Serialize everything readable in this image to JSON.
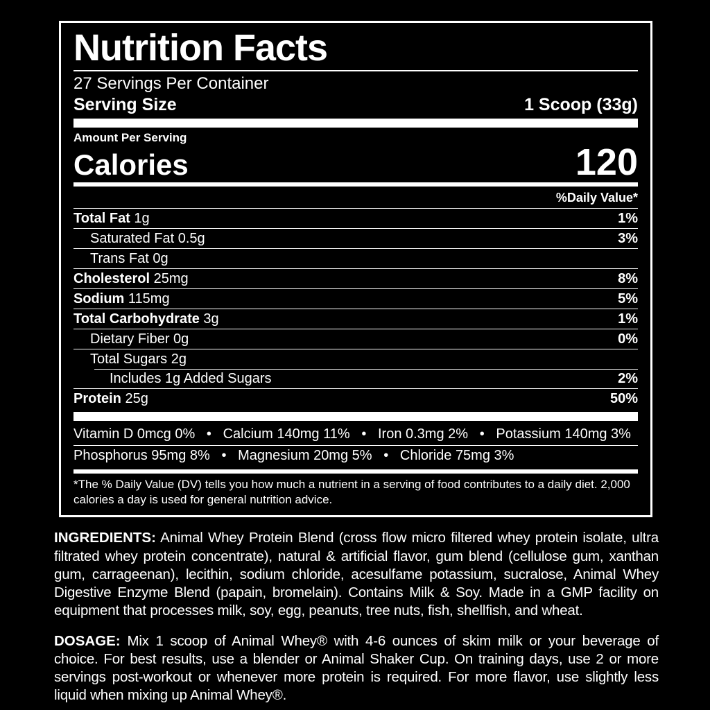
{
  "colors": {
    "background": "#000000",
    "panel_background": "#000000",
    "text": "#ffffff",
    "rule": "#ffffff"
  },
  "panel": {
    "title": "Nutrition Facts",
    "servings_per_container": "27 Servings Per Container",
    "serving_size_label": "Serving Size",
    "serving_size_value": "1 Scoop (33g)",
    "amount_per_serving": "Amount Per Serving",
    "calories_label": "Calories",
    "calories_value": "120",
    "daily_value_header": "%Daily Value*",
    "bullet": "•",
    "rows": [
      {
        "label": "Total Fat",
        "amount": "1g",
        "dv": "1%",
        "bold": true,
        "indent": 0
      },
      {
        "label": "Saturated Fat",
        "amount": "0.5g",
        "dv": "3%",
        "bold": false,
        "indent": 1
      },
      {
        "label": "Trans Fat",
        "amount": "0g",
        "dv": "",
        "bold": false,
        "indent": 1
      },
      {
        "label": "Cholesterol",
        "amount": "25mg",
        "dv": "8%",
        "bold": true,
        "indent": 0
      },
      {
        "label": "Sodium",
        "amount": "115mg",
        "dv": "5%",
        "bold": true,
        "indent": 0
      },
      {
        "label": "Total Carbohydrate",
        "amount": "3g",
        "dv": "1%",
        "bold": true,
        "indent": 0
      },
      {
        "label": "Dietary Fiber",
        "amount": "0g",
        "dv": "0%",
        "bold": false,
        "indent": 1
      },
      {
        "label": "Total Sugars",
        "amount": "2g",
        "dv": "",
        "bold": false,
        "indent": 1
      },
      {
        "label": "Includes 1g Added Sugars",
        "amount": "",
        "dv": "2%",
        "bold": false,
        "indent": 2
      },
      {
        "label": "Protein",
        "amount": "25g",
        "dv": "50%",
        "bold": true,
        "indent": 0
      }
    ],
    "micro_rows": [
      {
        "items": [
          "Vitamin D 0mcg 0%",
          "Calcium 140mg 11%",
          "Iron 0.3mg 2%",
          "Potassium 140mg 3%"
        ]
      },
      {
        "items": [
          "Phosphorus 95mg 8%",
          "Magnesium 20mg 5%",
          "Chloride 75mg 3%"
        ]
      }
    ],
    "footnote": "*The % Daily Value (DV) tells you how much a nutrient in a serving of food contributes to a daily diet. 2,000 calories a day is used for general nutrition advice."
  },
  "ingredients": {
    "heading": "INGREDIENTS:",
    "text": "Animal Whey Protein Blend (cross flow micro filtered whey protein isolate, ultra filtrated whey protein concentrate), natural & artificial flavor, gum blend (cellulose gum, xanthan gum, carrageenan), lecithin, sodium chloride, acesulfame potassium, sucralose, Animal Whey Digestive Enzyme Blend (papain, bromelain). Contains Milk & Soy. Made in a GMP facility on equipment that processes milk, soy, egg, peanuts, tree nuts, fish, shellfish, and wheat."
  },
  "dosage": {
    "heading": "DOSAGE:",
    "text": "Mix 1 scoop of Animal Whey® with 4-6 ounces of skim milk or your beverage of choice. For best results, use a blender or Animal Shaker Cup. On training days, use 2 or more servings post-workout or whenever more protein is required. For more flavor, use slightly less liquid when mixing up Animal Whey®."
  }
}
